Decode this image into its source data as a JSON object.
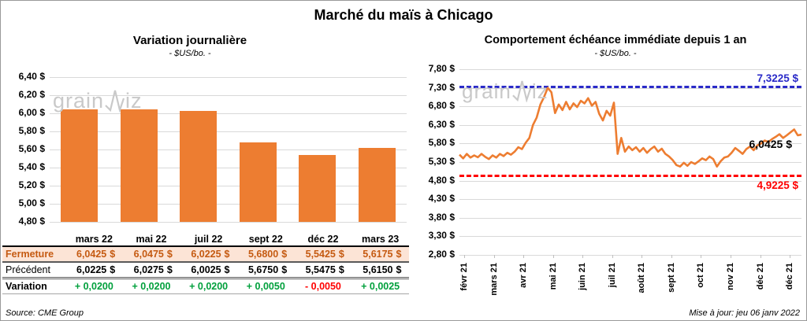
{
  "page": {
    "title": "Marché du maïs à Chicago",
    "source": "Source: CME Group",
    "updated": "Mise à jour: jeu 06 janv 2022",
    "watermark": {
      "prefix": "grain",
      "suffix": "iz"
    }
  },
  "colors": {
    "series_orange": "#ED7D31",
    "grid_gray": "#D9D9D9",
    "axis_gray": "#BFBFBF",
    "table_highlight_bg": "#FCE4D6",
    "table_highlight_text": "#C55A11",
    "positive_green": "#00A03C",
    "negative_red": "#FF0000",
    "resistance_blue": "#2A2AC8",
    "support_red": "#FF0000",
    "watermark_gray": "#C9C9C9"
  },
  "chart_data": [
    {
      "type": "bar",
      "title": "Variation journalière",
      "subtitle": "- $US/bo. -",
      "categories": [
        "mars 22",
        "mai 22",
        "juil 22",
        "sept 22",
        "déc 22",
        "mars 23"
      ],
      "values": [
        6.0425,
        6.0475,
        6.0225,
        5.68,
        5.5425,
        5.6175
      ],
      "ylim": [
        4.8,
        6.4
      ],
      "ytick_step": 0.2,
      "ytick_labels": [
        "6,40 $",
        "6,20 $",
        "6,00 $",
        "5,80 $",
        "5,60 $",
        "5,40 $",
        "5,20 $",
        "5,00 $",
        "4,80 $"
      ],
      "bar_color": "#ED7D31",
      "grid": true,
      "legend": "none"
    },
    {
      "type": "line",
      "title": "Comportement échéance immédiate depuis 1 an",
      "subtitle": "- $US/bo. -",
      "x_tick_labels": [
        "févr 21",
        "mars 21",
        "avr 21",
        "mai 21",
        "juin 21",
        "juil 21",
        "août 21",
        "sept 21",
        "oct 21",
        "nov 21",
        "déc 21",
        "déc 21"
      ],
      "ylim": [
        2.8,
        7.8
      ],
      "ytick_step": 0.5,
      "ytick_labels": [
        "7,80 $",
        "7,30 $",
        "6,80 $",
        "6,30 $",
        "5,80 $",
        "5,30 $",
        "4,80 $",
        "4,30 $",
        "3,80 $",
        "3,30 $",
        "2,80 $"
      ],
      "line_color": "#ED7D31",
      "grid": true,
      "legend": "none",
      "values": [
        5.5,
        5.4,
        5.52,
        5.42,
        5.48,
        5.43,
        5.52,
        5.44,
        5.38,
        5.48,
        5.42,
        5.52,
        5.46,
        5.55,
        5.5,
        5.58,
        5.7,
        5.65,
        5.82,
        5.95,
        6.3,
        6.5,
        6.85,
        7.05,
        7.3,
        7.18,
        6.62,
        6.85,
        6.7,
        6.92,
        6.72,
        6.88,
        6.78,
        6.95,
        6.88,
        7.02,
        6.82,
        6.92,
        6.6,
        6.42,
        6.68,
        6.55,
        6.9,
        5.52,
        5.95,
        5.58,
        5.72,
        5.62,
        5.7,
        5.58,
        5.68,
        5.55,
        5.65,
        5.72,
        5.58,
        5.66,
        5.52,
        5.45,
        5.35,
        5.22,
        5.18,
        5.28,
        5.2,
        5.3,
        5.25,
        5.32,
        5.4,
        5.35,
        5.45,
        5.38,
        5.18,
        5.32,
        5.42,
        5.45,
        5.55,
        5.68,
        5.6,
        5.52,
        5.65,
        5.72,
        5.62,
        5.75,
        5.8,
        5.88,
        5.84,
        5.92,
        5.98,
        6.05,
        5.95,
        6.02,
        6.1,
        6.18,
        6.02,
        6.0425
      ],
      "resistance": {
        "value": 7.3225,
        "label": "7,3225 $"
      },
      "support": {
        "value": 4.9225,
        "label": "4,9225 $"
      },
      "last": {
        "value": 6.0425,
        "label": "6,0425 $"
      }
    }
  ],
  "table": {
    "columns": [
      "mars 22",
      "mai 22",
      "juil 22",
      "sept 22",
      "déc 22",
      "mars 23"
    ],
    "currency": "$",
    "rows": [
      {
        "label": "Fermeture",
        "style": "fermeture",
        "has_currency": true,
        "values": [
          "6,0425",
          "6,0475",
          "6,0225",
          "5,6800",
          "5,5425",
          "5,6175"
        ]
      },
      {
        "label": "Précédent",
        "style": "precedent",
        "has_currency": true,
        "values": [
          "6,0225",
          "6,0275",
          "6,0025",
          "5,6750",
          "5,5475",
          "5,6150"
        ]
      },
      {
        "label": "Variation",
        "style": "variation",
        "has_currency": false,
        "values": [
          "+ 0,0200",
          "+ 0,0200",
          "+ 0,0200",
          "+ 0,0050",
          "- 0,0050",
          "+ 0,0025"
        ]
      }
    ]
  }
}
